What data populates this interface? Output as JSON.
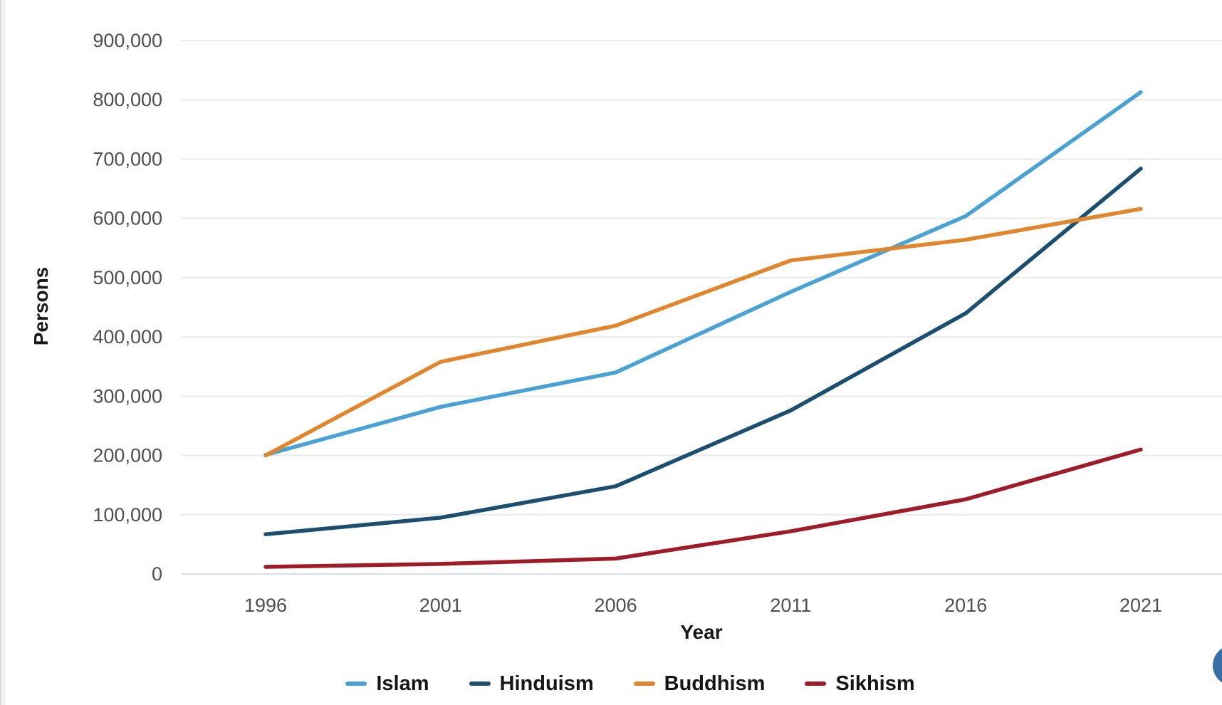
{
  "page": {
    "edge_strip_color": "#f3f3f3",
    "fab_color": "#3a6da1"
  },
  "chart_data": {
    "type": "line",
    "title": "",
    "xlabel": "Year",
    "ylabel": "Persons",
    "x": [
      1996,
      2001,
      2006,
      2011,
      2016,
      2021
    ],
    "xtick_labels": [
      "1996",
      "2001",
      "2006",
      "2011",
      "2016",
      "2021"
    ],
    "ylim": [
      0,
      900000
    ],
    "ytick_step": 100000,
    "yticks": [
      0,
      100000,
      200000,
      300000,
      400000,
      500000,
      600000,
      700000,
      800000,
      900000
    ],
    "ytick_labels": [
      "0",
      "100,000",
      "200,000",
      "300,000",
      "400,000",
      "500,000",
      "600,000",
      "700,000",
      "800,000",
      "900,000"
    ],
    "grid": true,
    "gridline_color": "#e9e9e9",
    "zero_axis_color": "#d9e0ec",
    "legend_position": "bottom",
    "series": [
      {
        "name": "Islam",
        "color": "#4aa2d4",
        "values": [
          201000,
          282000,
          340000,
          476000,
          604000,
          813000
        ]
      },
      {
        "name": "Hinduism",
        "color": "#1c4e70",
        "values": [
          67000,
          95000,
          148000,
          276000,
          440000,
          684000
        ]
      },
      {
        "name": "Buddhism",
        "color": "#e0862f",
        "values": [
          200000,
          358000,
          419000,
          529000,
          564000,
          616000
        ]
      },
      {
        "name": "Sikhism",
        "color": "#9e1c28",
        "values": [
          12000,
          17000,
          26000,
          72000,
          126000,
          210000
        ]
      }
    ]
  }
}
